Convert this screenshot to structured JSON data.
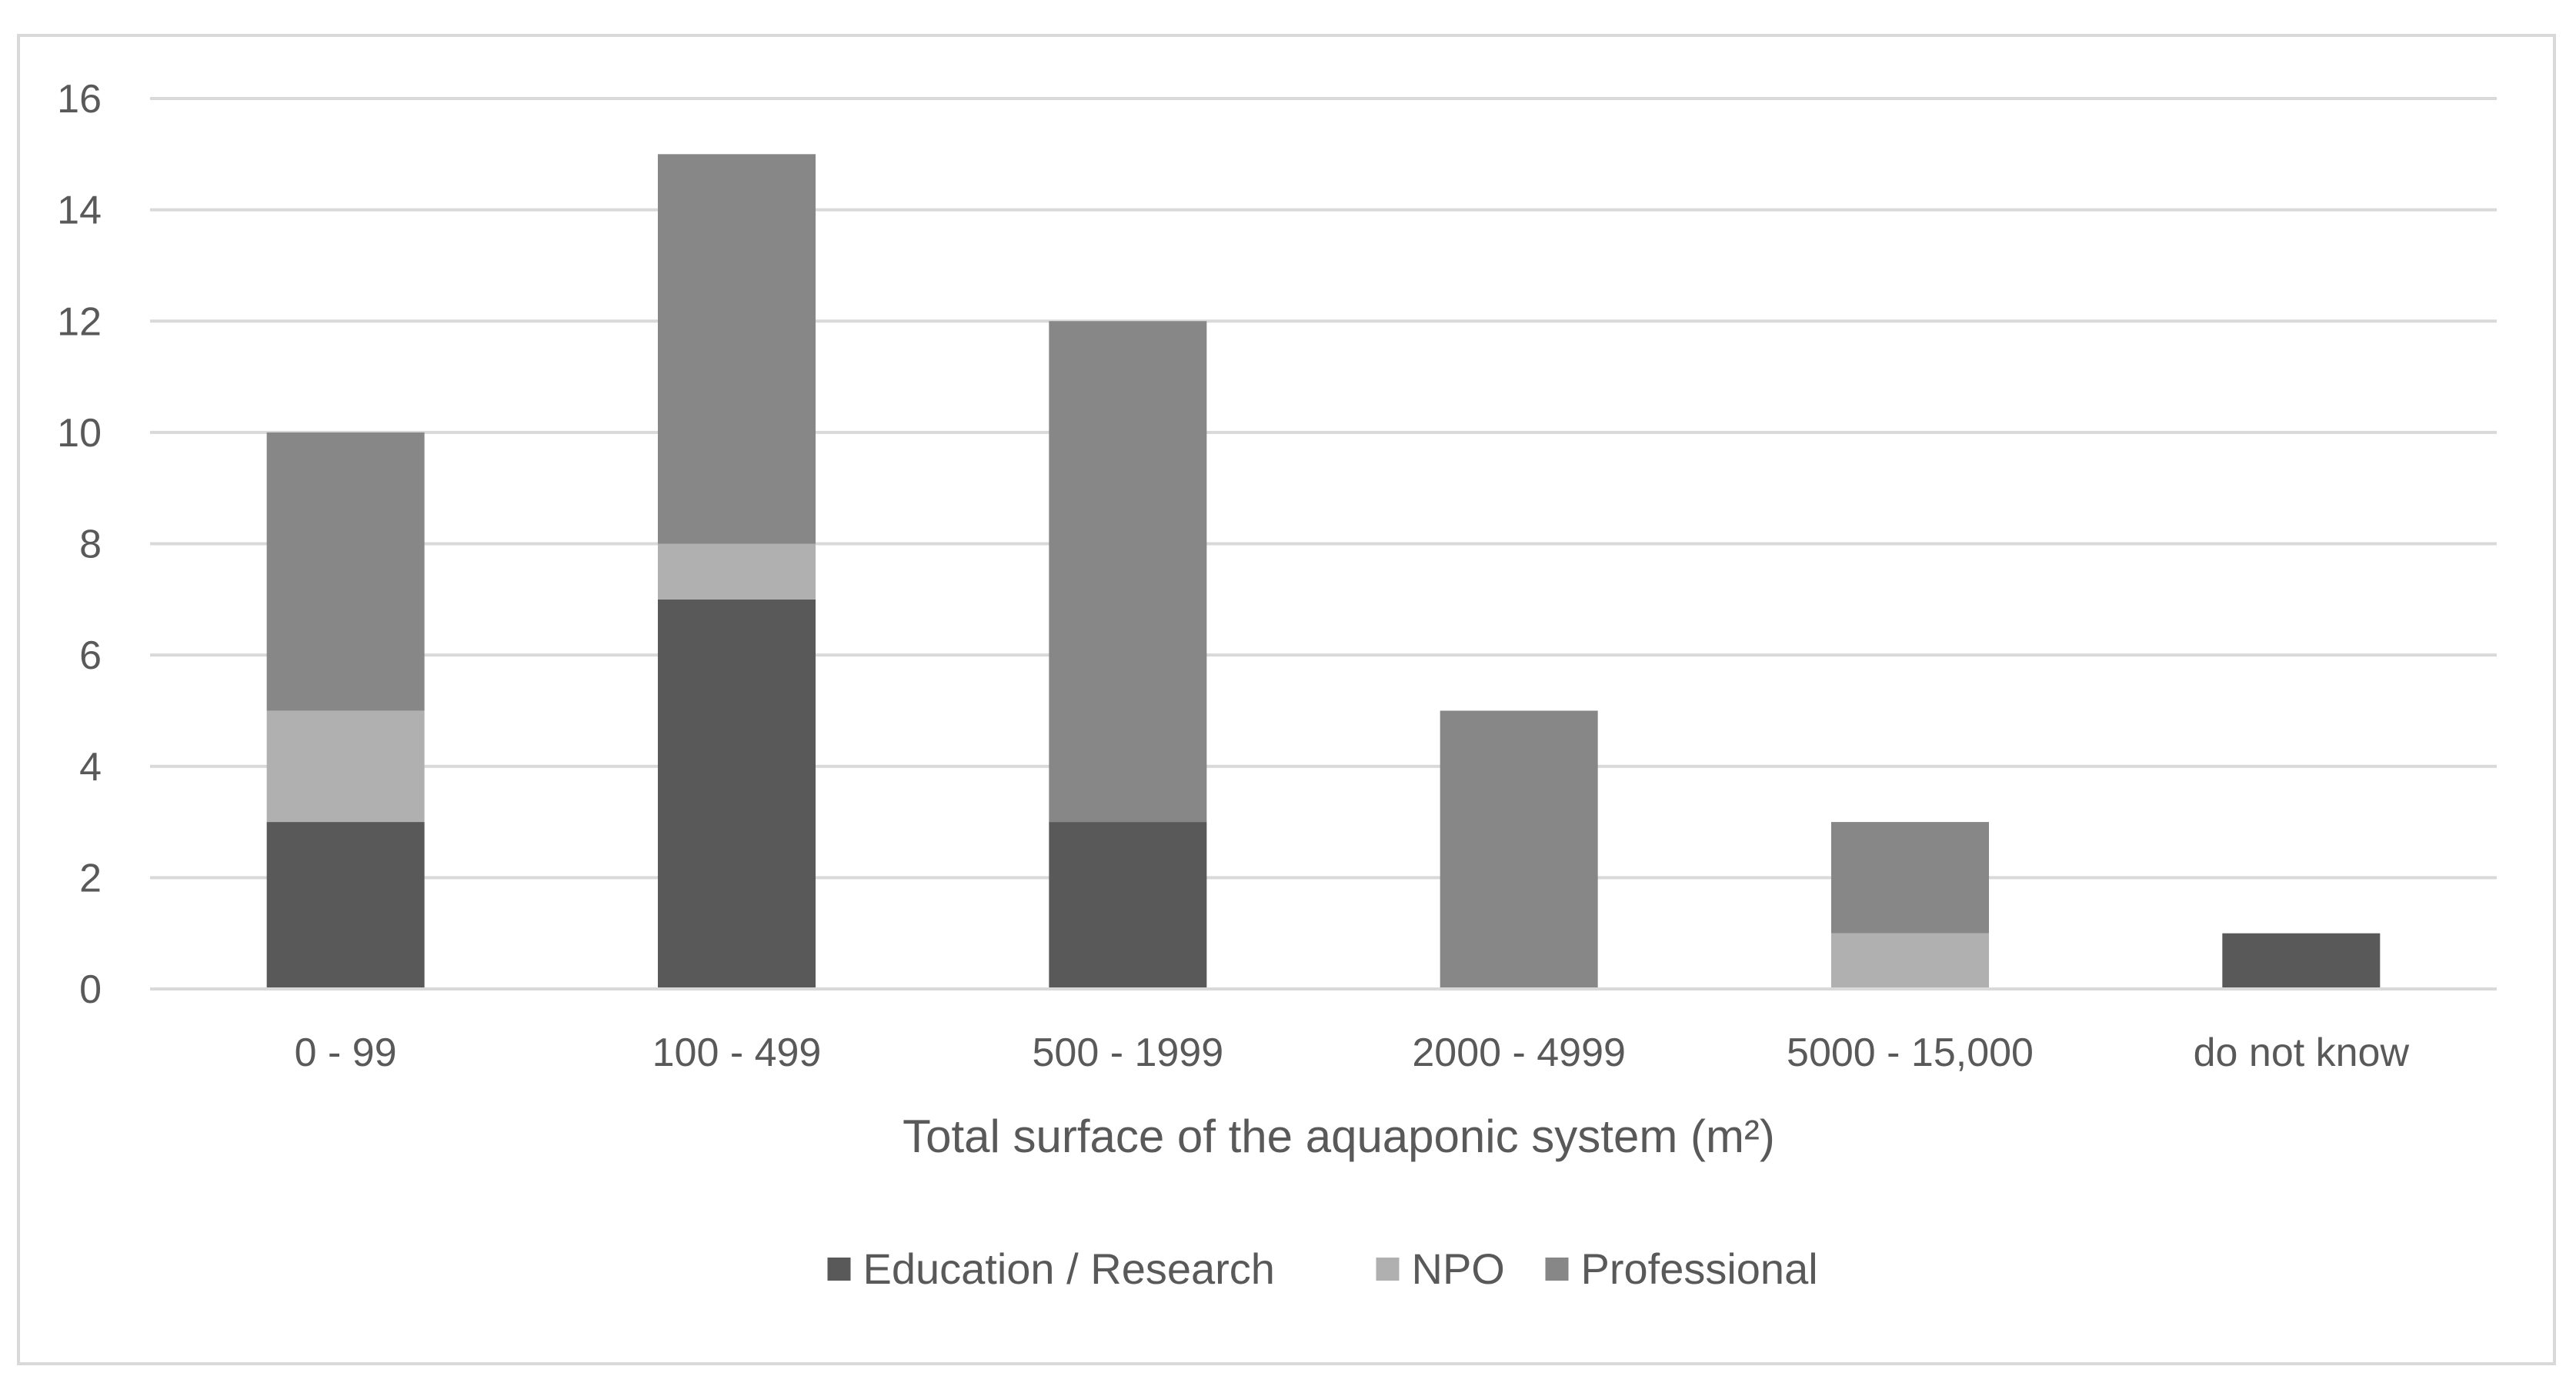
{
  "chart_data": {
    "type": "bar",
    "stacked": true,
    "title": "",
    "xlabel": "Total surface of the aquaponic system (m²)",
    "ylabel": "",
    "categories": [
      "0 - 99",
      "100 - 499",
      "500 - 1999",
      "2000 - 4999",
      "5000 - 15,000",
      "do not know"
    ],
    "series": [
      {
        "name": "Education / Research",
        "color": "#595959",
        "values": [
          3,
          7,
          3,
          0,
          0,
          1
        ]
      },
      {
        "name": "NPO",
        "color": "#b0b0b0",
        "values": [
          2,
          1,
          0,
          0,
          1,
          0
        ]
      },
      {
        "name": "Professional",
        "color": "#878787",
        "values": [
          5,
          7,
          9,
          5,
          2,
          0
        ]
      }
    ],
    "ylim": [
      0,
      16
    ],
    "yticks": [
      0,
      2,
      4,
      6,
      8,
      10,
      12,
      14,
      16
    ],
    "grid": true,
    "legend_position": "bottom"
  }
}
